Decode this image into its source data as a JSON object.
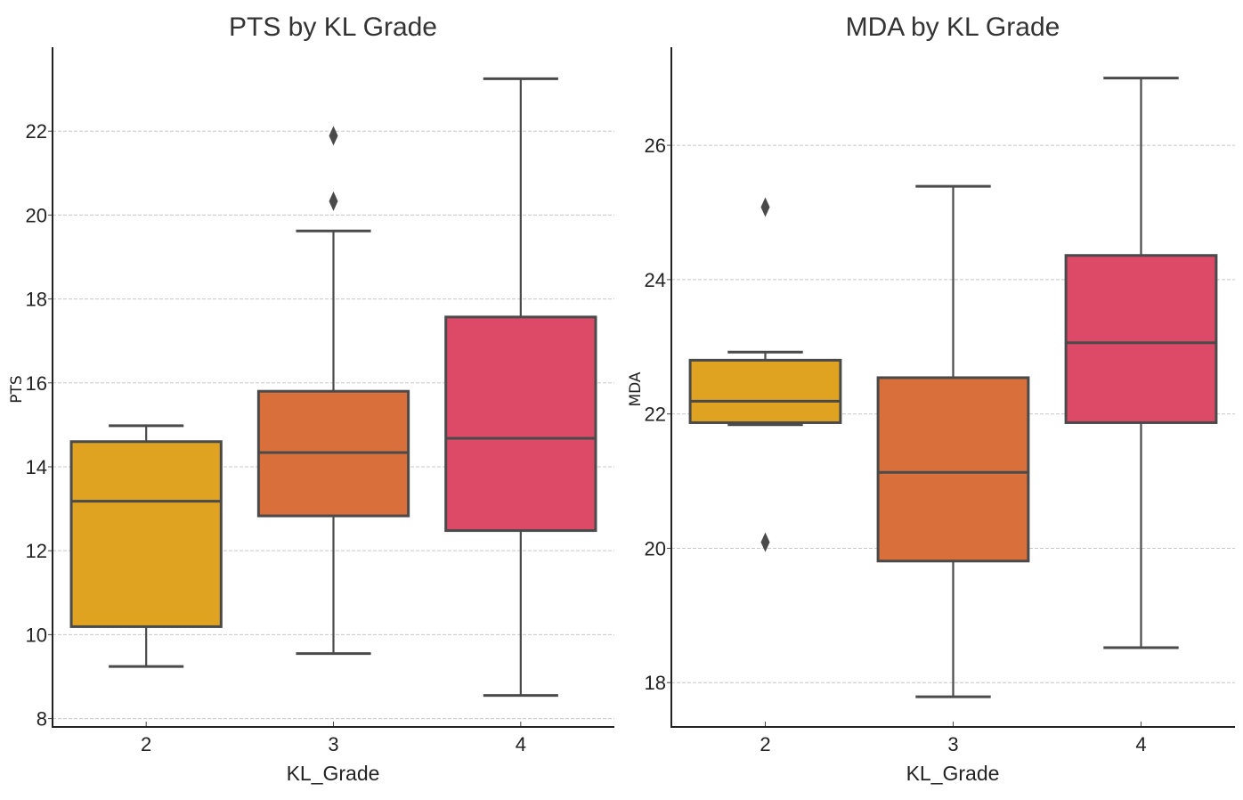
{
  "chart_data": [
    {
      "type": "box",
      "title": "PTS by KL Grade",
      "xlabel": "KL_Grade",
      "ylabel": "PTS",
      "categories": [
        "2",
        "3",
        "4"
      ],
      "ylim": [
        7.8,
        24.0
      ],
      "yticks": [
        8,
        10,
        12,
        14,
        16,
        18,
        20,
        22
      ],
      "grid": "y-dashed",
      "colors": [
        "#DFA321",
        "#D9703B",
        "#DC4A68"
      ],
      "boxes": [
        {
          "category": "2",
          "whisker_low": 9.24,
          "q1": 10.19,
          "median": 13.18,
          "q3": 14.6,
          "whisker_high": 14.98,
          "outliers": []
        },
        {
          "category": "3",
          "whisker_low": 9.55,
          "q1": 12.83,
          "median": 14.34,
          "q3": 15.8,
          "whisker_high": 19.62,
          "outliers": [
            20.33,
            21.89
          ]
        },
        {
          "category": "4",
          "whisker_low": 8.55,
          "q1": 12.48,
          "median": 14.68,
          "q3": 17.57,
          "whisker_high": 23.25,
          "outliers": []
        }
      ]
    },
    {
      "type": "box",
      "title": "MDA by KL Grade",
      "xlabel": "KL_Grade",
      "ylabel": "MDA",
      "categories": [
        "2",
        "3",
        "4"
      ],
      "ylim": [
        17.34,
        27.46
      ],
      "yticks": [
        18,
        20,
        22,
        24,
        26
      ],
      "grid": "y-dashed",
      "colors": [
        "#DFA321",
        "#D9703B",
        "#DC4A68"
      ],
      "boxes": [
        {
          "category": "2",
          "whisker_low": 21.84,
          "q1": 21.87,
          "median": 22.19,
          "q3": 22.8,
          "whisker_high": 22.92,
          "outliers": [
            20.09,
            25.08
          ]
        },
        {
          "category": "3",
          "whisker_low": 17.79,
          "q1": 19.81,
          "median": 21.13,
          "q3": 22.54,
          "whisker_high": 25.39,
          "outliers": []
        },
        {
          "category": "4",
          "whisker_low": 18.52,
          "q1": 21.87,
          "median": 23.06,
          "q3": 24.36,
          "whisker_high": 27.0,
          "outliers": []
        }
      ]
    }
  ]
}
